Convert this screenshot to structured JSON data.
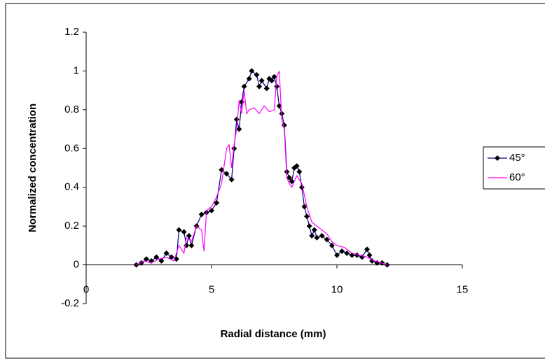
{
  "chart_data": {
    "type": "line",
    "xlabel": "Radial distance (mm)",
    "ylabel": "Normalized concentration",
    "xlim": [
      0,
      15
    ],
    "xticks": [
      0,
      5,
      10,
      15
    ],
    "ylim": [
      -0.2,
      1.2
    ],
    "yticks": [
      -0.2,
      0,
      0.2,
      0.4,
      0.6,
      0.8,
      1,
      1.2
    ],
    "legend": "right",
    "series": [
      {
        "name": "45°",
        "color": "#000080",
        "marker": "diamond",
        "x": [
          2.0,
          2.2,
          2.4,
          2.6,
          2.8,
          3.0,
          3.2,
          3.4,
          3.6,
          3.7,
          3.9,
          4.0,
          4.1,
          4.2,
          4.4,
          4.6,
          4.8,
          5.0,
          5.2,
          5.4,
          5.6,
          5.8,
          5.9,
          6.0,
          6.1,
          6.2,
          6.3,
          6.5,
          6.6,
          6.8,
          6.9,
          7.0,
          7.2,
          7.3,
          7.4,
          7.5,
          7.6,
          7.7,
          7.8,
          7.9,
          8.0,
          8.1,
          8.2,
          8.3,
          8.4,
          8.5,
          8.6,
          8.7,
          8.8,
          8.9,
          9.0,
          9.1,
          9.2,
          9.4,
          9.6,
          9.8,
          10.0,
          10.2,
          10.4,
          10.6,
          10.8,
          11.0,
          11.2,
          11.3,
          11.4,
          11.6,
          11.8,
          12.0
        ],
        "values": [
          0,
          0.01,
          0.03,
          0.02,
          0.04,
          0.02,
          0.06,
          0.04,
          0.03,
          0.18,
          0.17,
          0.1,
          0.15,
          0.1,
          0.2,
          0.26,
          0.27,
          0.28,
          0.32,
          0.49,
          0.47,
          0.44,
          0.6,
          0.75,
          0.7,
          0.84,
          0.92,
          0.96,
          1.0,
          0.98,
          0.92,
          0.95,
          0.91,
          0.96,
          0.95,
          0.97,
          0.92,
          0.82,
          0.78,
          0.72,
          0.48,
          0.45,
          0.43,
          0.5,
          0.51,
          0.48,
          0.4,
          0.3,
          0.25,
          0.2,
          0.15,
          0.18,
          0.14,
          0.15,
          0.13,
          0.1,
          0.05,
          0.07,
          0.06,
          0.05,
          0.05,
          0.04,
          0.08,
          0.05,
          0.02,
          0.01,
          0.01,
          0
        ]
      },
      {
        "name": "60°",
        "color": "#ff00ff",
        "marker": "none",
        "x": [
          2.0,
          2.3,
          2.6,
          2.9,
          3.2,
          3.5,
          3.7,
          3.9,
          4.0,
          4.2,
          4.4,
          4.6,
          4.7,
          4.8,
          5.0,
          5.2,
          5.4,
          5.6,
          5.7,
          5.8,
          5.9,
          6.0,
          6.1,
          6.2,
          6.3,
          6.4,
          6.5,
          6.7,
          6.9,
          7.1,
          7.3,
          7.5,
          7.6,
          7.7,
          7.8,
          7.9,
          8.0,
          8.1,
          8.2,
          8.4,
          8.6,
          8.8,
          9.0,
          9.2,
          9.4,
          9.6,
          9.8,
          10.0,
          10.3,
          10.6,
          10.9,
          11.2,
          11.5,
          11.8,
          12.0
        ],
        "values": [
          0,
          0.02,
          0.01,
          0.03,
          0.04,
          0.02,
          0.1,
          0.06,
          0.14,
          0.12,
          0.2,
          0.18,
          0.07,
          0.28,
          0.3,
          0.35,
          0.42,
          0.6,
          0.62,
          0.5,
          0.62,
          0.7,
          0.85,
          0.78,
          0.9,
          0.78,
          0.8,
          0.81,
          0.78,
          0.82,
          0.79,
          0.8,
          0.97,
          1.0,
          0.75,
          0.7,
          0.45,
          0.42,
          0.4,
          0.46,
          0.42,
          0.3,
          0.22,
          0.2,
          0.18,
          0.16,
          0.12,
          0.1,
          0.09,
          0.06,
          0.05,
          0.04,
          0.02,
          0.01,
          0
        ]
      }
    ]
  }
}
